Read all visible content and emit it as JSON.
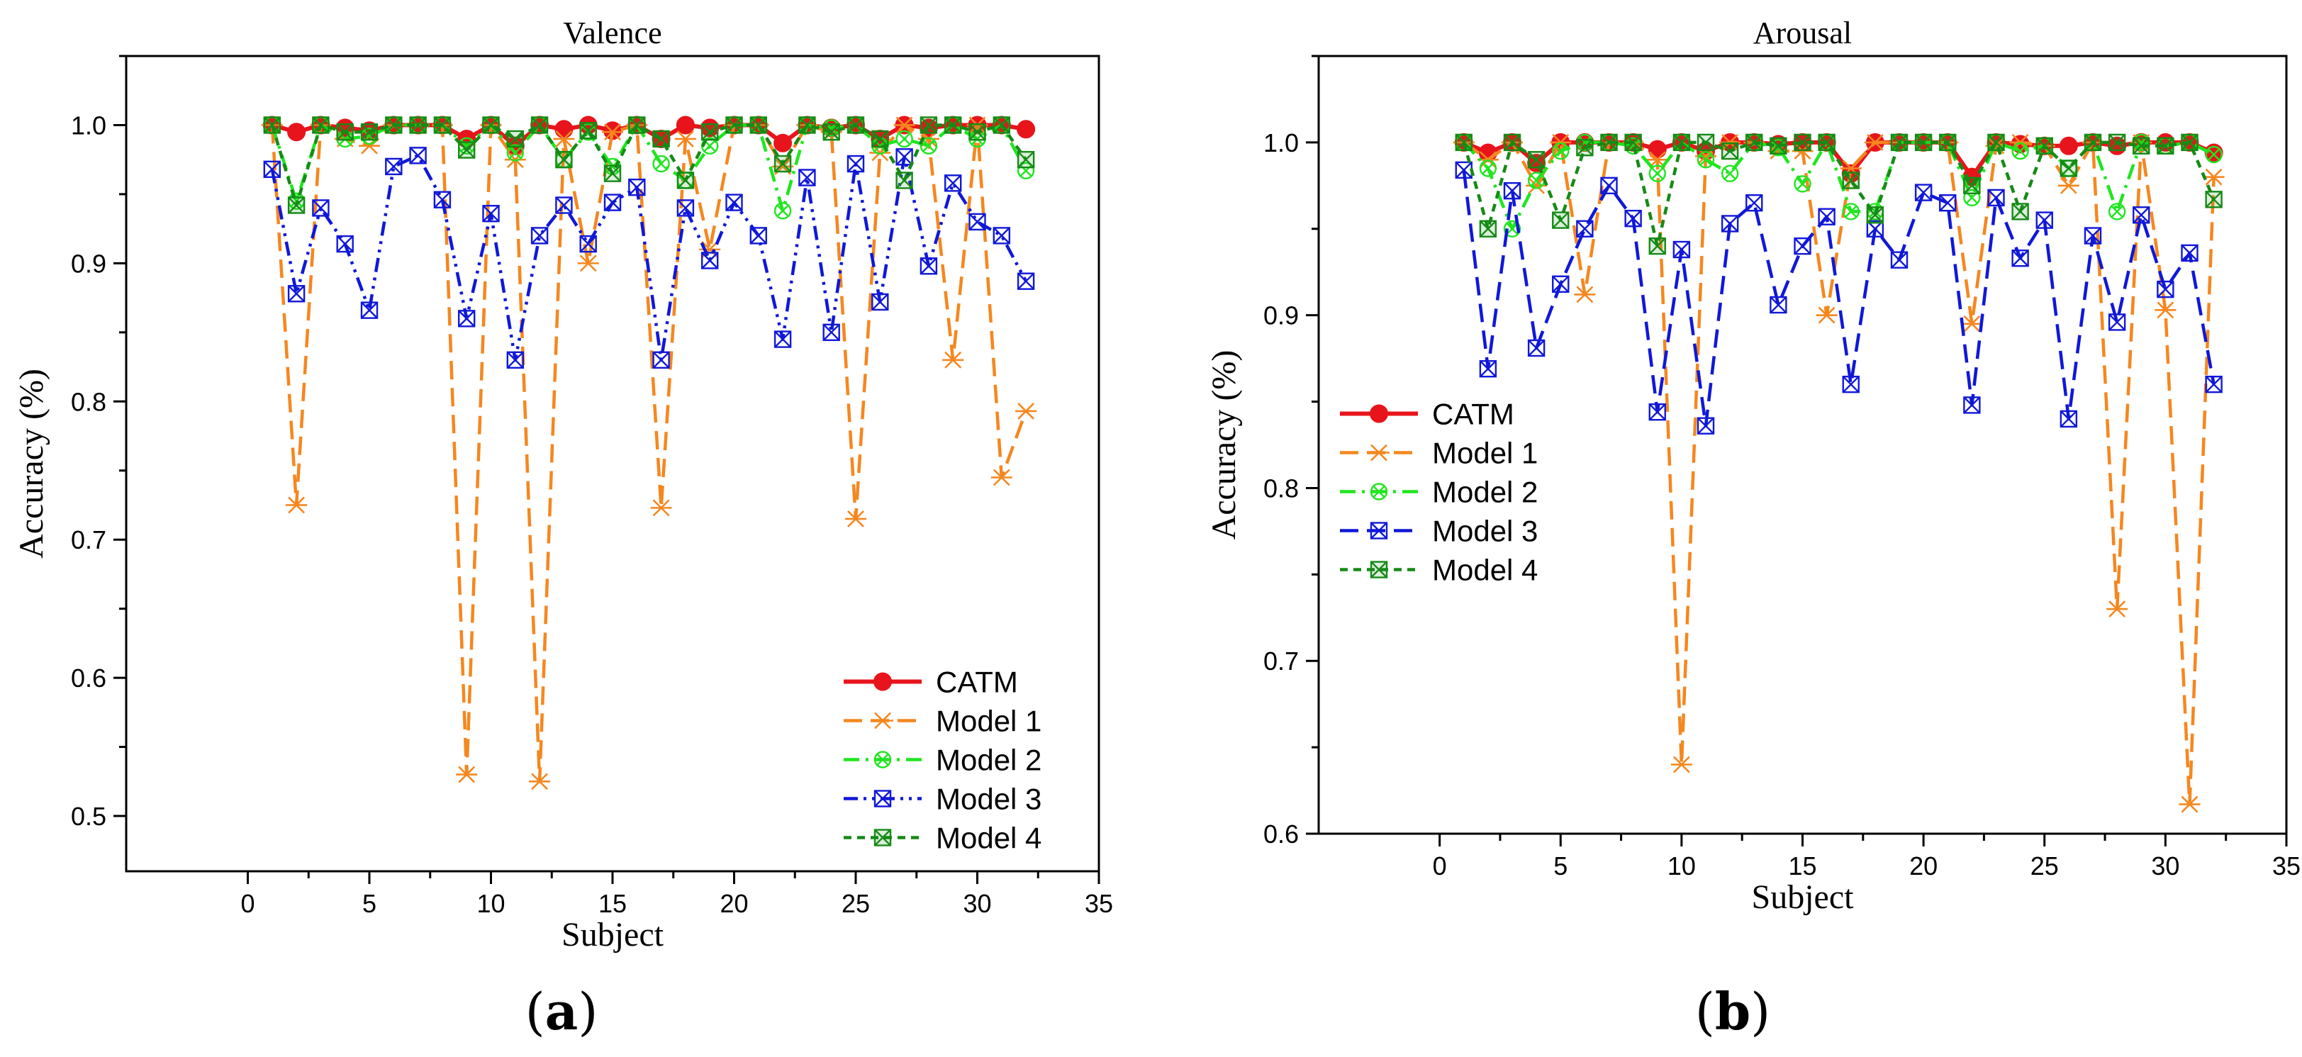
{
  "chart_data": [
    {
      "type": "line",
      "title": "Valence",
      "xlabel": "Subject",
      "ylabel": "Accuracy (%)",
      "xlim": [
        -5,
        35
      ],
      "ylim": [
        0.46,
        1.05
      ],
      "xticks": [
        0,
        5,
        10,
        15,
        20,
        25,
        30,
        35
      ],
      "yticks": [
        0.5,
        0.6,
        0.7,
        0.8,
        0.9,
        1.0
      ],
      "ytick_labels": [
        "0.5",
        "0.6",
        "0.7",
        "0.8",
        "0.9",
        "1.0"
      ],
      "grid": false,
      "legend_position": "bottom-right",
      "subplot_label": [
        "(",
        "a",
        ")"
      ],
      "x": [
        1,
        2,
        3,
        4,
        5,
        6,
        7,
        8,
        9,
        10,
        11,
        12,
        13,
        14,
        15,
        16,
        17,
        18,
        19,
        20,
        21,
        22,
        23,
        24,
        25,
        26,
        27,
        28,
        29,
        30,
        31,
        32
      ],
      "series": [
        {
          "name": "CATM",
          "color": "#e8141c",
          "dash": "solid",
          "marker": "circle",
          "values": [
            1.0,
            0.995,
            1.0,
            0.998,
            0.996,
            1.0,
            1.0,
            1.0,
            0.99,
            1.0,
            0.985,
            1.0,
            0.997,
            1.0,
            0.996,
            1.0,
            0.99,
            1.0,
            0.998,
            1.0,
            1.0,
            0.987,
            1.0,
            0.998,
            1.0,
            0.99,
            1.0,
            0.998,
            1.0,
            1.0,
            1.0,
            0.997
          ]
        },
        {
          "name": "Model 1",
          "color": "#f5871f",
          "dash": "long-dash",
          "marker": "asterisk",
          "values": [
            1.0,
            0.725,
            1.0,
            0.99,
            0.985,
            1.0,
            1.0,
            1.0,
            0.53,
            1.0,
            0.975,
            0.525,
            0.99,
            0.9,
            0.995,
            1.0,
            0.723,
            0.99,
            0.91,
            1.0,
            1.0,
            0.97,
            1.0,
            0.995,
            0.715,
            0.98,
            1.0,
            0.99,
            0.83,
            1.0,
            0.745,
            0.793
          ]
        },
        {
          "name": "Model 2",
          "color": "#1ee61e",
          "dash": "dash-dot",
          "marker": "circle-x",
          "values": [
            1.0,
            0.945,
            1.0,
            0.99,
            0.992,
            1.0,
            1.0,
            1.0,
            0.985,
            1.0,
            0.98,
            1.0,
            0.975,
            0.995,
            0.97,
            1.0,
            0.972,
            0.96,
            0.985,
            1.0,
            1.0,
            0.938,
            1.0,
            0.998,
            1.0,
            0.985,
            0.99,
            0.985,
            1.0,
            0.99,
            1.0,
            0.967
          ]
        },
        {
          "name": "Model 3",
          "color": "#1018d8",
          "dash": "dash-dot-dot",
          "marker": "square-x",
          "values": [
            0.968,
            0.878,
            0.94,
            0.914,
            0.866,
            0.97,
            0.978,
            0.946,
            0.86,
            0.936,
            0.83,
            0.92,
            0.942,
            0.914,
            0.944,
            0.955,
            0.83,
            0.94,
            0.902,
            0.944,
            0.92,
            0.845,
            0.962,
            0.85,
            0.972,
            0.872,
            0.977,
            0.898,
            0.958,
            0.93,
            0.92,
            0.887
          ]
        },
        {
          "name": "Model 4",
          "color": "#168a16",
          "dash": "short-dash",
          "marker": "square-x",
          "values": [
            1.0,
            0.942,
            1.0,
            0.995,
            0.995,
            1.0,
            1.0,
            1.0,
            0.982,
            1.0,
            0.99,
            1.0,
            0.975,
            0.996,
            0.965,
            1.0,
            0.99,
            0.96,
            0.995,
            1.0,
            1.0,
            0.972,
            1.0,
            0.995,
            1.0,
            0.99,
            0.96,
            1.0,
            1.0,
            0.995,
            1.0,
            0.975
          ]
        }
      ]
    },
    {
      "type": "line",
      "title": "Arousal",
      "xlabel": "Subject",
      "ylabel": "Accuracy (%)",
      "xlim": [
        -5,
        35
      ],
      "ylim": [
        0.6,
        1.05
      ],
      "xticks": [
        0,
        5,
        10,
        15,
        20,
        25,
        30,
        35
      ],
      "yticks": [
        0.6,
        0.7,
        0.8,
        0.9,
        1.0
      ],
      "ytick_labels": [
        "0.6",
        "0.7",
        "0.8",
        "0.9",
        "1.0"
      ],
      "grid": false,
      "legend_position": "bottom-left",
      "subplot_label": [
        "(",
        "b",
        ")"
      ],
      "x": [
        1,
        2,
        3,
        4,
        5,
        6,
        7,
        8,
        9,
        10,
        11,
        12,
        13,
        14,
        15,
        16,
        17,
        18,
        19,
        20,
        21,
        22,
        23,
        24,
        25,
        26,
        27,
        28,
        29,
        30,
        31,
        32
      ],
      "series": [
        {
          "name": "CATM",
          "color": "#e8141c",
          "dash": "solid",
          "marker": "circle",
          "values": [
            1.0,
            0.994,
            1.0,
            0.988,
            1.0,
            1.0,
            1.0,
            1.0,
            0.996,
            1.0,
            0.995,
            1.0,
            1.0,
            0.999,
            1.0,
            1.0,
            0.982,
            1.0,
            1.0,
            1.0,
            1.0,
            0.98,
            1.0,
            0.999,
            0.998,
            0.998,
            1.0,
            0.998,
            1.0,
            1.0,
            1.0,
            0.994
          ]
        },
        {
          "name": "Model 1",
          "color": "#f5871f",
          "dash": "long-dash",
          "marker": "asterisk",
          "values": [
            1.0,
            0.99,
            1.0,
            0.975,
            1.0,
            0.912,
            1.0,
            1.0,
            0.99,
            0.64,
            0.992,
            1.0,
            1.0,
            0.995,
            0.995,
            0.9,
            0.985,
            1.0,
            1.0,
            1.0,
            1.0,
            0.895,
            0.998,
            1.0,
            0.998,
            0.975,
            1.0,
            0.73,
            1.0,
            0.903,
            0.617,
            0.98
          ]
        },
        {
          "name": "Model 2",
          "color": "#1ee61e",
          "dash": "dash-dot",
          "marker": "circle-x",
          "values": [
            1.0,
            0.985,
            0.95,
            0.978,
            0.995,
            1.0,
            1.0,
            0.998,
            0.982,
            1.0,
            0.99,
            0.982,
            1.0,
            0.997,
            0.976,
            1.0,
            0.96,
            0.96,
            1.0,
            1.0,
            1.0,
            0.968,
            1.0,
            0.995,
            0.998,
            0.985,
            1.0,
            0.96,
            1.0,
            0.998,
            1.0,
            0.993
          ]
        },
        {
          "name": "Model 3",
          "color": "#1018d8",
          "dash": "long-dash",
          "marker": "square-x",
          "values": [
            0.984,
            0.869,
            0.972,
            0.881,
            0.918,
            0.95,
            0.975,
            0.956,
            0.844,
            0.938,
            0.836,
            0.953,
            0.965,
            0.906,
            0.94,
            0.957,
            0.86,
            0.95,
            0.932,
            0.971,
            0.965,
            0.848,
            0.968,
            0.933,
            0.955,
            0.84,
            0.946,
            0.896,
            0.958,
            0.915,
            0.936,
            0.86
          ]
        },
        {
          "name": "Model 4",
          "color": "#168a16",
          "dash": "short-dash",
          "marker": "square-x",
          "values": [
            1.0,
            0.95,
            1.0,
            0.99,
            0.955,
            0.997,
            1.0,
            1.0,
            0.94,
            1.0,
            1.0,
            0.995,
            1.0,
            0.998,
            1.0,
            1.0,
            0.978,
            0.958,
            1.0,
            1.0,
            1.0,
            0.975,
            1.0,
            0.96,
            0.998,
            0.985,
            1.0,
            1.0,
            0.998,
            0.998,
            1.0,
            0.967
          ]
        }
      ]
    }
  ]
}
